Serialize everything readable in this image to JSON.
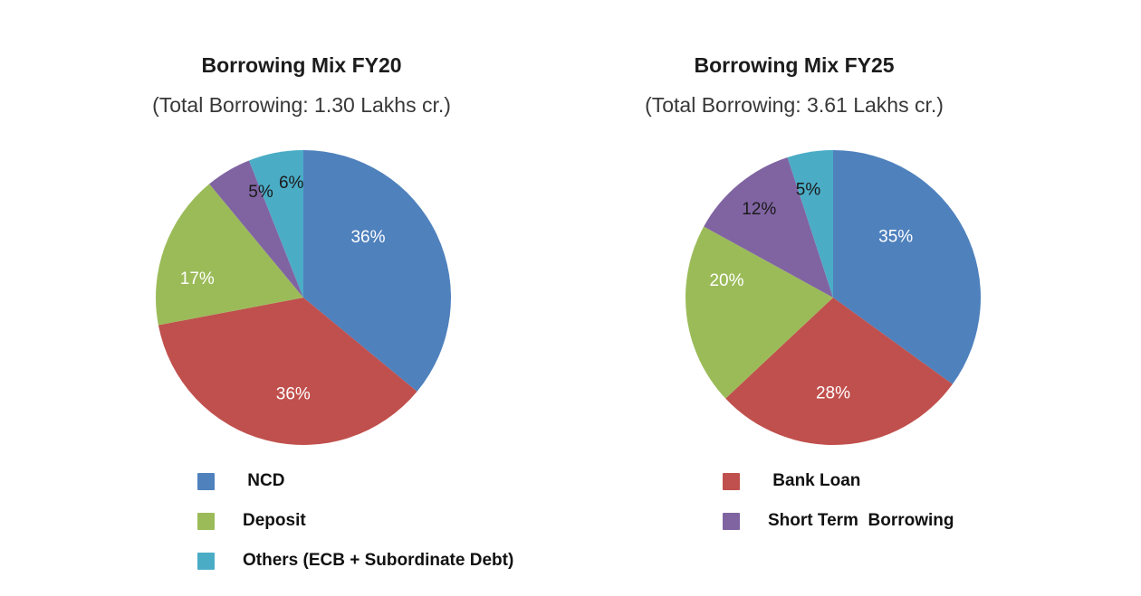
{
  "page": {
    "background": "#ffffff",
    "title_color": "#1c1c1c",
    "subtitle_color": "#383838"
  },
  "palette": {
    "blue": "#4F81BD",
    "red": "#C0504D",
    "green": "#9BBB59",
    "purple": "#8064A2",
    "teal": "#4BACC6"
  },
  "chart_data": [
    {
      "type": "pie",
      "title": "Borrowing Mix FY20",
      "subtitle": "(Total Borrowing: 1.30 Lakhs cr.)",
      "start_angle_deg": 0,
      "direction": "clockwise-from-top",
      "categories": [
        "NCD",
        "Bank Loan",
        "Deposit",
        "Short Term Borrowing",
        "Others (ECB + Subordinate Debt)"
      ],
      "values": [
        36,
        36,
        17,
        5,
        6
      ],
      "slices": [
        {
          "key": "ncd",
          "name": "NCD",
          "value": 36,
          "pct_label": "36%",
          "color": "#4F81BD",
          "pct_color": "#ffffff",
          "label_angle_deg": 47,
          "label_r_frac": 0.6
        },
        {
          "key": "bank-loan",
          "name": "Bank Loan",
          "value": 36,
          "pct_label": "36%",
          "color": "#C0504D",
          "pct_color": "#ffffff",
          "label_angle_deg": 186,
          "label_r_frac": 0.66
        },
        {
          "key": "deposit",
          "name": "Deposit",
          "value": 17,
          "pct_label": "17%",
          "color": "#9BBB59",
          "pct_color": "#ffffff",
          "label_angle_deg": 280,
          "label_r_frac": 0.73
        },
        {
          "key": "short-term-borrowing",
          "name": "Short Term Borrowing",
          "value": 5,
          "pct_label": "5%",
          "color": "#8064A2",
          "pct_color": "#1a1a1a",
          "label_angle_deg": 338,
          "label_r_frac": 0.77
        },
        {
          "key": "others",
          "name": "Others (ECB + Subordinate Debt)",
          "value": 6,
          "pct_label": "6%",
          "color": "#4BACC6",
          "pct_color": "#1a1a1a",
          "label_angle_deg": 354,
          "label_r_frac": 0.78
        }
      ]
    },
    {
      "type": "pie",
      "title": "Borrowing Mix FY25",
      "subtitle": "(Total Borrowing: 3.61 Lakhs cr.)",
      "start_angle_deg": 0,
      "direction": "clockwise-from-top",
      "categories": [
        "NCD",
        "Bank Loan",
        "Deposit",
        "Short Term Borrowing",
        "Others (ECB + Subordinate Debt)"
      ],
      "values": [
        35,
        28,
        20,
        12,
        5
      ],
      "slices": [
        {
          "key": "ncd",
          "name": "NCD",
          "value": 35,
          "pct_label": "35%",
          "color": "#4F81BD",
          "pct_color": "#ffffff",
          "label_angle_deg": 46,
          "label_r_frac": 0.59
        },
        {
          "key": "bank-loan",
          "name": "Bank Loan",
          "value": 28,
          "pct_label": "28%",
          "color": "#C0504D",
          "pct_color": "#ffffff",
          "label_angle_deg": 180,
          "label_r_frac": 0.65
        },
        {
          "key": "deposit",
          "name": "Deposit",
          "value": 20,
          "pct_label": "20%",
          "color": "#9BBB59",
          "pct_color": "#ffffff",
          "label_angle_deg": 279,
          "label_r_frac": 0.73
        },
        {
          "key": "short-term-borrowing",
          "name": "Short Term Borrowing",
          "value": 12,
          "pct_label": "12%",
          "color": "#8064A2",
          "pct_color": "#1a1a1a",
          "label_angle_deg": 320,
          "label_r_frac": 0.78
        },
        {
          "key": "others",
          "name": "Others (ECB + Subordinate Debt)",
          "value": 5,
          "pct_label": "5%",
          "color": "#4BACC6",
          "pct_color": "#1a1a1a",
          "label_angle_deg": 347,
          "label_r_frac": 0.75
        }
      ]
    }
  ],
  "legend_columns": [
    {
      "items": [
        {
          "key": "ncd",
          "label": " NCD",
          "color": "#4F81BD"
        },
        {
          "key": "deposit",
          "label": "Deposit",
          "color": "#9BBB59"
        },
        {
          "key": "others",
          "label": "Others (ECB + Subordinate Debt)",
          "color": "#4BACC6"
        }
      ]
    },
    {
      "items": [
        {
          "key": "bank-loan",
          "label": " Bank Loan",
          "color": "#C0504D"
        },
        {
          "key": "short-term-borrowing",
          "label": "Short Term  Borrowing",
          "color": "#8064A2"
        }
      ]
    }
  ]
}
